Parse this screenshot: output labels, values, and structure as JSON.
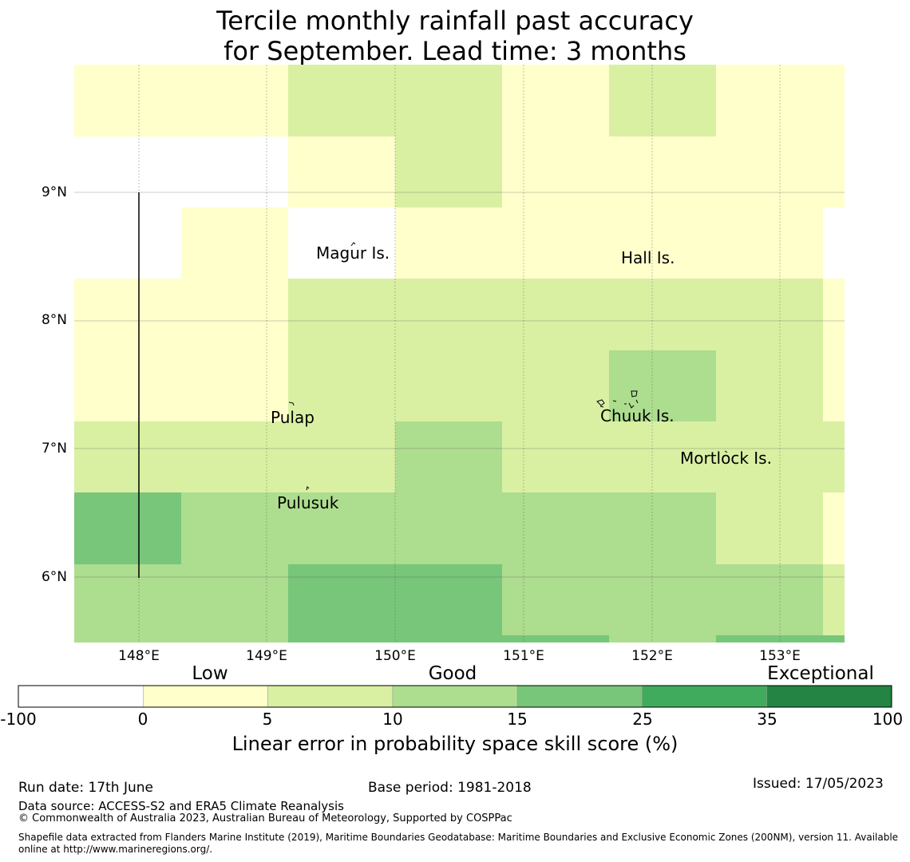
{
  "title_lines": [
    "Tercile monthly rainfall past accuracy",
    "for September. Lead time: 3 months"
  ],
  "map": {
    "lon_ticks": [
      "148°E",
      "149°E",
      "150°E",
      "151°E",
      "152°E",
      "153°E"
    ],
    "lat_ticks": [
      "9°N",
      "8°N",
      "7°N",
      "6°N"
    ],
    "places": [
      {
        "name": "Magur Is."
      },
      {
        "name": "Hall Is."
      },
      {
        "name": "Pulap"
      },
      {
        "name": "Chuuk Is."
      },
      {
        "name": "Mortlock Is."
      },
      {
        "name": "Pulusuk"
      }
    ],
    "colors": {
      "white": "#ffffff",
      "c0": "#ffffcc",
      "c5": "#d9f0a3",
      "c10": "#addd8e",
      "c15": "#78c679",
      "c25": "#41ab5d",
      "c35": "#238443"
    },
    "grid_rows": [
      [
        "c0",
        "c0",
        "c5",
        "c5",
        "c0",
        "c5",
        "c0",
        "c0"
      ],
      [
        "white",
        "white",
        "c0",
        "c5",
        "c0",
        "c0",
        "c0",
        "c0"
      ],
      [
        "white",
        "c0",
        "white",
        "c0",
        "c0",
        "c0",
        "c0",
        "white"
      ],
      [
        "c0",
        "c0",
        "c5",
        "c5",
        "c5",
        "c5",
        "c5",
        "c0"
      ],
      [
        "c0",
        "c0",
        "c5",
        "c5",
        "c5",
        "c10",
        "c5",
        "c0"
      ],
      [
        "c5",
        "c5",
        "c5",
        "c10",
        "c5",
        "c5",
        "c5",
        "c5"
      ],
      [
        "c15",
        "c10",
        "c10",
        "c10",
        "c10",
        "c10",
        "c5",
        "c0"
      ],
      [
        "c10",
        "c10",
        "c15",
        "c15",
        "c10",
        "c10",
        "c10",
        "c5"
      ],
      [
        "c10",
        "c10",
        "c15",
        "c15",
        "c15",
        "c10",
        "c15",
        "c15"
      ]
    ]
  },
  "colorbar": {
    "categories": [
      "Low",
      "Good",
      "Exceptional"
    ],
    "ticks": [
      "-100",
      "0",
      "5",
      "10",
      "15",
      "25",
      "35",
      "100"
    ],
    "colors": [
      "#ffffff",
      "#ffffcc",
      "#d9f0a3",
      "#addd8e",
      "#78c679",
      "#41ab5d",
      "#238443"
    ],
    "label": "Linear error in probability space skill score (%)"
  },
  "footer": {
    "run_date": "Run date: 17th June",
    "base_period": "Base period: 1981-2018",
    "issued": "Issued: 17/05/2023",
    "data_source": "Data source: ACCESS-S2 and ERA5 Climate Reanalysis",
    "copyright": "© Commonwealth of Australia 2023, Australian Bureau of Meteorology, Supported by COSPPac",
    "shapefile_line1": "Shapefile data extracted from Flanders Marine Institute (2019), Maritime Boundaries Geodatabase: Maritime Boundaries and Exclusive Economic Zones (200NM), version 11. Available",
    "shapefile_line2": "online at http://www.marineregions.org/."
  }
}
